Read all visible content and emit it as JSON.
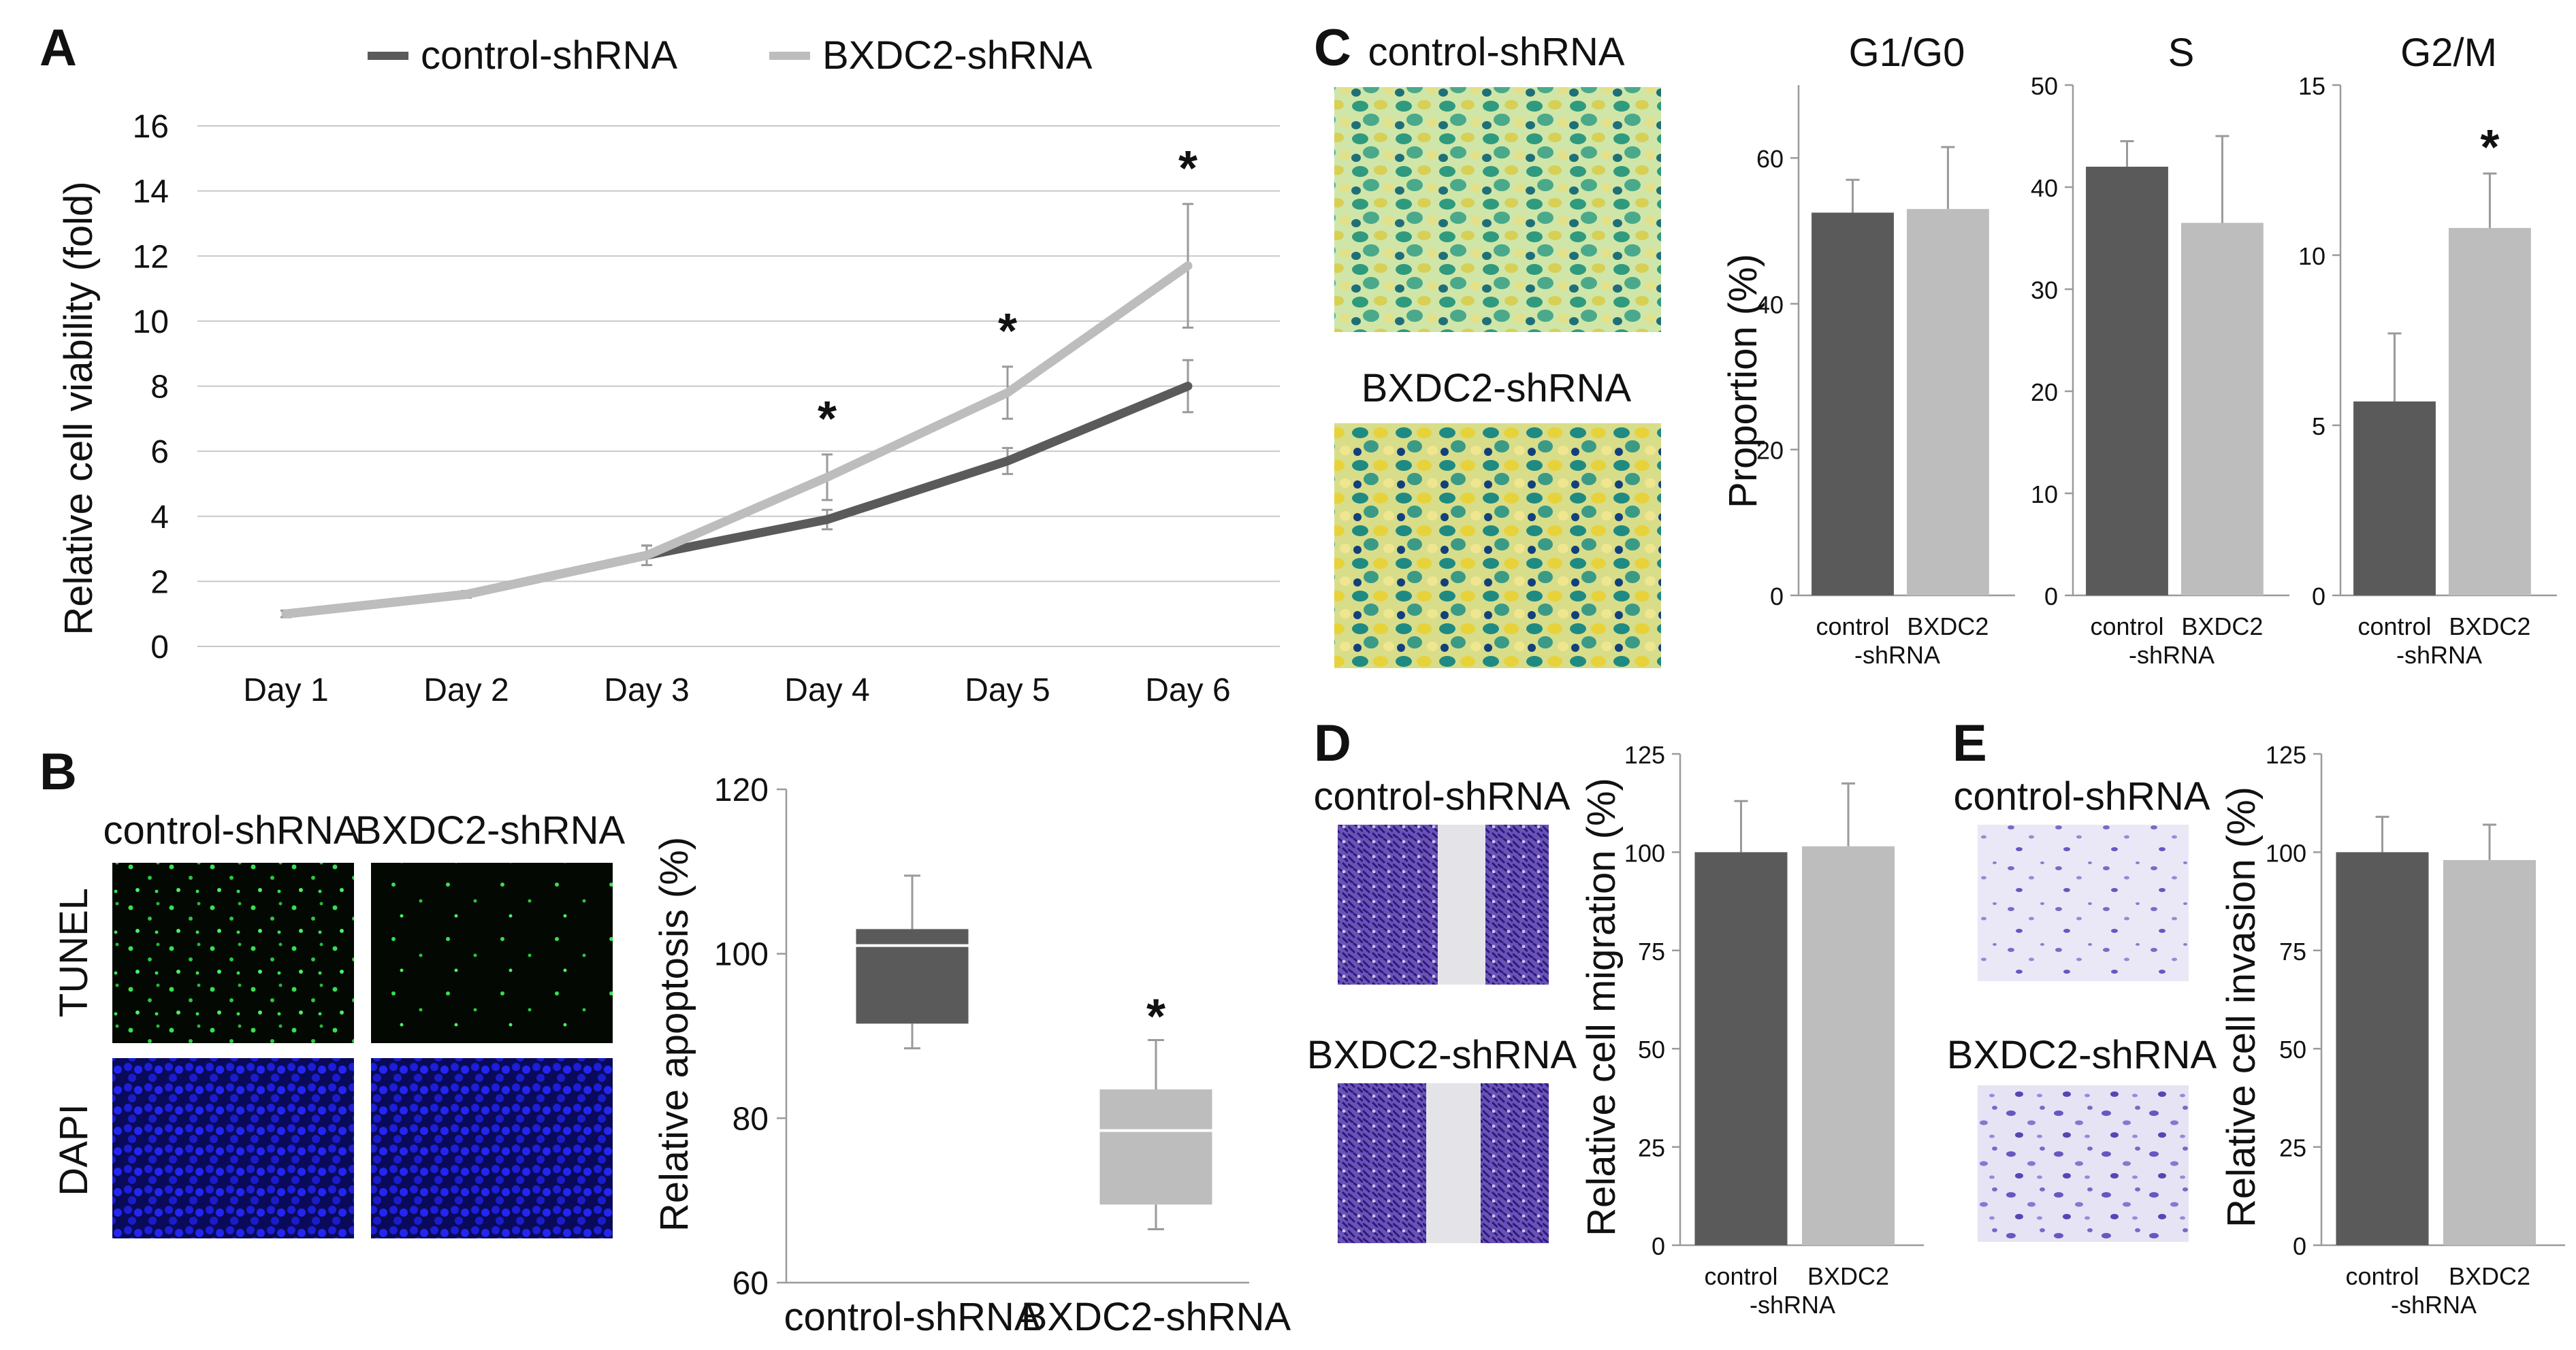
{
  "colors": {
    "dark": "#5a5a5a",
    "light": "#bdbdbd",
    "green": "#2fd04a",
    "blue": "#1a1ee8",
    "purple": "#5a3fb0"
  },
  "series_names": [
    "control-shRNA",
    "BXDC2-shRNA"
  ],
  "group_labels": {
    "control_line1": "control",
    "bxdc2_line1": "BXDC2",
    "line2": "-shRNA"
  },
  "panels": {
    "A": {
      "letter": "A"
    },
    "B": {
      "letter": "B",
      "img_col_labels": [
        "control-shRNA",
        "BXDC2-shRNA"
      ],
      "img_row_labels": [
        "TUNEL",
        "DAPI"
      ]
    },
    "C": {
      "letter": "C",
      "img_labels": [
        "control-shRNA",
        "BXDC2-shRNA"
      ]
    },
    "D": {
      "letter": "D",
      "img_labels": [
        "control-shRNA",
        "BXDC2-shRNA"
      ]
    },
    "E": {
      "letter": "E",
      "img_labels": [
        "control-shRNA",
        "BXDC2-shRNA"
      ]
    }
  },
  "chart_data": [
    {
      "id": "A",
      "type": "line",
      "categories": [
        "Day 1",
        "Day 2",
        "Day 3",
        "Day 4",
        "Day 5",
        "Day 6"
      ],
      "ylabel": "Relative cell viability (fold)",
      "ylim": [
        0,
        16
      ],
      "yticks": [
        0,
        2,
        4,
        6,
        8,
        10,
        12,
        14,
        16
      ],
      "grid": true,
      "legend": "top",
      "series": [
        {
          "name": "control-shRNA",
          "values": [
            1.0,
            1.6,
            2.8,
            3.9,
            5.7,
            8.0
          ],
          "errors": [
            0.1,
            0.1,
            0.3,
            0.3,
            0.4,
            0.8
          ]
        },
        {
          "name": "BXDC2-shRNA",
          "values": [
            1.0,
            1.6,
            2.8,
            5.2,
            7.8,
            11.7
          ],
          "errors": [
            0.1,
            0.1,
            0.3,
            0.7,
            0.8,
            1.9
          ]
        }
      ],
      "annotations": [
        "*",
        "*",
        "*"
      ],
      "annotation_days": [
        "Day 4",
        "Day 5",
        "Day 6"
      ]
    },
    {
      "id": "B",
      "type": "box",
      "categories": [
        "control-shRNA",
        "BXDC2-shRNA"
      ],
      "ylabel": "Relative apoptosis (%)",
      "ylim": [
        60,
        120
      ],
      "yticks": [
        60,
        80,
        100,
        120
      ],
      "boxes": [
        {
          "min": 88.5,
          "q1": 91.5,
          "median": 101,
          "q3": 103,
          "max": 109.5
        },
        {
          "min": 66.5,
          "q1": 69.5,
          "median": 78.5,
          "q3": 83.5,
          "max": 89.5
        }
      ],
      "annotations": [
        "",
        "*"
      ]
    },
    {
      "id": "C1",
      "type": "bar",
      "title": "G1/G0",
      "ylabel": "Proportion (%)",
      "ylim": [
        0,
        70
      ],
      "yticks": [
        0,
        20,
        40,
        60
      ],
      "values": [
        52.5,
        53
      ],
      "errors": [
        4.5,
        8.5
      ],
      "annotations": [
        "",
        ""
      ]
    },
    {
      "id": "C2",
      "type": "bar",
      "title": "S",
      "ylabel": "",
      "ylim": [
        0,
        50
      ],
      "yticks": [
        0,
        10,
        20,
        30,
        40,
        50
      ],
      "values": [
        42,
        36.5
      ],
      "errors": [
        2.5,
        8.5
      ],
      "annotations": [
        "",
        ""
      ]
    },
    {
      "id": "C3",
      "type": "bar",
      "title": "G2/M",
      "ylabel": "",
      "ylim": [
        0,
        15
      ],
      "yticks": [
        0,
        5,
        10,
        15
      ],
      "values": [
        5.7,
        10.8
      ],
      "errors": [
        2.0,
        1.6
      ],
      "annotations": [
        "",
        "*"
      ]
    },
    {
      "id": "D",
      "type": "bar",
      "title": "",
      "ylabel": "Relative cell migration (%)",
      "ylim": [
        0,
        125
      ],
      "yticks": [
        0,
        25,
        50,
        75,
        100,
        125
      ],
      "values": [
        100,
        101.5
      ],
      "errors": [
        13,
        16
      ],
      "annotations": [
        "",
        ""
      ]
    },
    {
      "id": "E",
      "type": "bar",
      "title": "",
      "ylabel": "Relative cell invasion (%)",
      "ylim": [
        0,
        125
      ],
      "yticks": [
        0,
        25,
        50,
        75,
        100,
        125
      ],
      "values": [
        100,
        98
      ],
      "errors": [
        9,
        9
      ],
      "annotations": [
        "",
        ""
      ]
    }
  ]
}
